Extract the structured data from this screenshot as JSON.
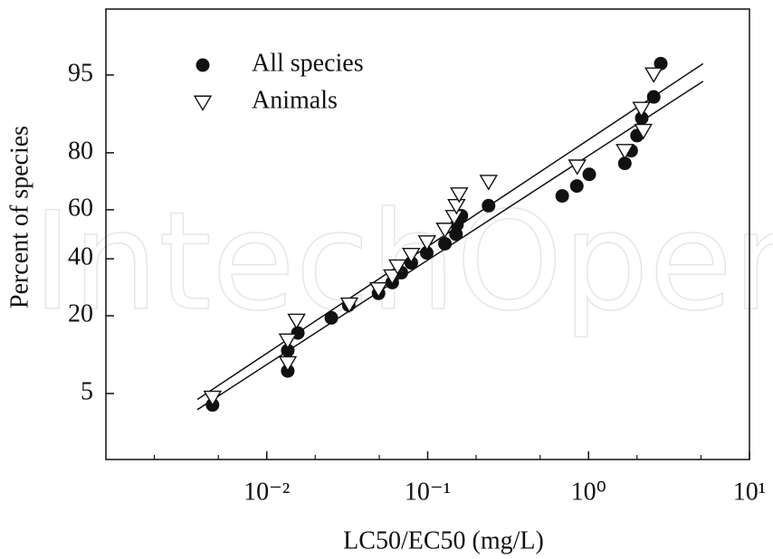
{
  "chart_data": {
    "type": "scatter",
    "watermark": "IntechOpen",
    "xlabel": "LC50/EC50 (mg/L)",
    "ylabel": "Percent of species",
    "xscale": "log",
    "yscale": "probit",
    "xlim": [
      0.001,
      10
    ],
    "ylim": [
      1,
      99
    ],
    "xticks": [
      {
        "value": 0.01,
        "label": "10⁻²"
      },
      {
        "value": 0.1,
        "label": "10⁻¹"
      },
      {
        "value": 1,
        "label": "10⁰"
      },
      {
        "value": 10,
        "label": "10¹"
      }
    ],
    "xminorticks": [
      0.002,
      0.005,
      0.02,
      0.05,
      0.2,
      0.5,
      2,
      5
    ],
    "yticks": [
      5,
      20,
      40,
      60,
      80,
      95
    ],
    "series": [
      {
        "name": "All species",
        "color": "#111111",
        "marker": "circle",
        "x": [
          0.0046,
          0.0135,
          0.0135,
          0.0156,
          0.0252,
          0.0323,
          0.0495,
          0.0602,
          0.0686,
          0.0791,
          0.0987,
          0.128,
          0.15,
          0.152,
          0.162,
          0.239,
          0.686,
          0.845,
          1.01,
          1.68,
          1.84,
          2.0,
          2.14,
          2.54,
          2.81
        ],
        "values": [
          3.9,
          11.5,
          7.9,
          15.4,
          19.4,
          23.2,
          27.1,
          30.9,
          34.6,
          38.4,
          42.4,
          46.1,
          50,
          53.9,
          57.6,
          61.6,
          65.4,
          69.1,
          73.2,
          76.8,
          80.6,
          84.6,
          88.5,
          92.2,
          96.1
        ]
      },
      {
        "name": "Animals",
        "color": "#111111",
        "marker": "triangle-down",
        "x": [
          0.0046,
          0.0135,
          0.0135,
          0.0153,
          0.0326,
          0.0495,
          0.0602,
          0.065,
          0.079,
          0.099,
          0.128,
          0.146,
          0.151,
          0.157,
          0.239,
          0.85,
          1.68,
          2.19,
          2.13,
          2.54
        ],
        "values": [
          4.6,
          13.7,
          9.2,
          18.7,
          23.5,
          28.6,
          33.3,
          37.1,
          41.7,
          46.8,
          52,
          57.2,
          61.6,
          66.1,
          70.7,
          75.9,
          80.6,
          85.8,
          90.3,
          95.1
        ]
      }
    ],
    "fit_lines": [
      {
        "color": "#111111",
        "x": [
          0.0037,
          5.15
        ],
        "values": [
          4.4,
          96.1
        ]
      },
      {
        "color": "#111111",
        "x": [
          0.0037,
          5.15
        ],
        "values": [
          3.5,
          94.3
        ]
      }
    ]
  }
}
